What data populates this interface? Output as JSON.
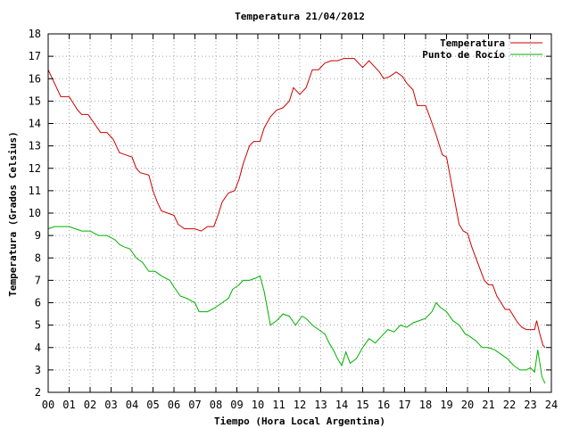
{
  "chart_data": {
    "type": "line",
    "title": "Temperatura 21/04/2012",
    "xlabel": "Tiempo (Hora Local Argentina)",
    "ylabel": "Temperatura (Grados Celsius)",
    "xlim": [
      0,
      24
    ],
    "ylim": [
      2,
      18
    ],
    "x_ticks": [
      "00",
      "01",
      "02",
      "03",
      "04",
      "05",
      "06",
      "07",
      "08",
      "09",
      "10",
      "11",
      "12",
      "13",
      "14",
      "15",
      "16",
      "17",
      "18",
      "19",
      "20",
      "21",
      "22",
      "23",
      "24"
    ],
    "y_ticks": [
      "2",
      "3",
      "4",
      "5",
      "6",
      "7",
      "8",
      "9",
      "10",
      "11",
      "12",
      "13",
      "14",
      "15",
      "16",
      "17",
      "18"
    ],
    "grid": true,
    "legend_position": "top-right",
    "series": [
      {
        "name": "Temperatura",
        "color": "#cc0000",
        "points": [
          [
            0.0,
            16.4
          ],
          [
            0.2,
            16.0
          ],
          [
            0.4,
            15.6
          ],
          [
            0.6,
            15.2
          ],
          [
            1.0,
            15.2
          ],
          [
            1.2,
            14.9
          ],
          [
            1.4,
            14.6
          ],
          [
            1.6,
            14.4
          ],
          [
            1.9,
            14.4
          ],
          [
            2.2,
            14.0
          ],
          [
            2.5,
            13.6
          ],
          [
            2.8,
            13.6
          ],
          [
            3.1,
            13.3
          ],
          [
            3.4,
            12.7
          ],
          [
            3.7,
            12.6
          ],
          [
            4.0,
            12.5
          ],
          [
            4.2,
            12.0
          ],
          [
            4.4,
            11.8
          ],
          [
            4.8,
            11.7
          ],
          [
            5.0,
            11.0
          ],
          [
            5.2,
            10.5
          ],
          [
            5.4,
            10.1
          ],
          [
            5.7,
            10.0
          ],
          [
            6.0,
            9.9
          ],
          [
            6.2,
            9.5
          ],
          [
            6.5,
            9.3
          ],
          [
            7.0,
            9.3
          ],
          [
            7.3,
            9.2
          ],
          [
            7.6,
            9.4
          ],
          [
            7.9,
            9.4
          ],
          [
            8.1,
            9.9
          ],
          [
            8.3,
            10.5
          ],
          [
            8.6,
            10.9
          ],
          [
            8.9,
            11.0
          ],
          [
            9.1,
            11.5
          ],
          [
            9.3,
            12.2
          ],
          [
            9.6,
            13.0
          ],
          [
            9.8,
            13.2
          ],
          [
            10.1,
            13.2
          ],
          [
            10.3,
            13.8
          ],
          [
            10.6,
            14.3
          ],
          [
            10.9,
            14.6
          ],
          [
            11.2,
            14.7
          ],
          [
            11.5,
            15.0
          ],
          [
            11.7,
            15.6
          ],
          [
            12.0,
            15.3
          ],
          [
            12.3,
            15.6
          ],
          [
            12.6,
            16.4
          ],
          [
            12.9,
            16.4
          ],
          [
            13.2,
            16.7
          ],
          [
            13.5,
            16.8
          ],
          [
            13.8,
            16.8
          ],
          [
            14.1,
            16.9
          ],
          [
            14.4,
            16.9
          ],
          [
            14.6,
            16.9
          ],
          [
            14.8,
            16.7
          ],
          [
            15.0,
            16.5
          ],
          [
            15.3,
            16.8
          ],
          [
            15.6,
            16.5
          ],
          [
            15.8,
            16.3
          ],
          [
            16.0,
            16.0
          ],
          [
            16.3,
            16.1
          ],
          [
            16.6,
            16.3
          ],
          [
            16.9,
            16.1
          ],
          [
            17.1,
            15.8
          ],
          [
            17.4,
            15.5
          ],
          [
            17.6,
            14.8
          ],
          [
            18.0,
            14.8
          ],
          [
            18.2,
            14.3
          ],
          [
            18.5,
            13.5
          ],
          [
            18.8,
            12.6
          ],
          [
            19.0,
            12.5
          ],
          [
            19.2,
            11.5
          ],
          [
            19.4,
            10.5
          ],
          [
            19.6,
            9.5
          ],
          [
            19.8,
            9.2
          ],
          [
            20.0,
            9.1
          ],
          [
            20.2,
            8.5
          ],
          [
            20.4,
            8.0
          ],
          [
            20.6,
            7.5
          ],
          [
            20.8,
            7.0
          ],
          [
            21.0,
            6.8
          ],
          [
            21.2,
            6.8
          ],
          [
            21.4,
            6.3
          ],
          [
            21.6,
            6.0
          ],
          [
            21.8,
            5.7
          ],
          [
            22.0,
            5.7
          ],
          [
            22.2,
            5.4
          ],
          [
            22.4,
            5.1
          ],
          [
            22.6,
            4.9
          ],
          [
            22.8,
            4.8
          ],
          [
            23.0,
            4.8
          ],
          [
            23.2,
            4.8
          ],
          [
            23.3,
            5.2
          ],
          [
            23.45,
            4.6
          ],
          [
            23.6,
            4.1
          ],
          [
            23.7,
            4.0
          ]
        ]
      },
      {
        "name": "Punto de Rocío",
        "color": "#00b000",
        "points": [
          [
            0.0,
            9.3
          ],
          [
            0.3,
            9.4
          ],
          [
            0.6,
            9.4
          ],
          [
            1.0,
            9.4
          ],
          [
            1.3,
            9.3
          ],
          [
            1.6,
            9.2
          ],
          [
            2.0,
            9.2
          ],
          [
            2.4,
            9.0
          ],
          [
            2.8,
            9.0
          ],
          [
            3.2,
            8.8
          ],
          [
            3.4,
            8.6
          ],
          [
            3.6,
            8.5
          ],
          [
            3.9,
            8.4
          ],
          [
            4.2,
            8.0
          ],
          [
            4.5,
            7.8
          ],
          [
            4.8,
            7.4
          ],
          [
            5.1,
            7.4
          ],
          [
            5.4,
            7.2
          ],
          [
            5.8,
            7.0
          ],
          [
            6.0,
            6.7
          ],
          [
            6.3,
            6.3
          ],
          [
            6.6,
            6.2
          ],
          [
            7.0,
            6.0
          ],
          [
            7.2,
            5.6
          ],
          [
            7.6,
            5.6
          ],
          [
            8.0,
            5.8
          ],
          [
            8.3,
            6.0
          ],
          [
            8.6,
            6.2
          ],
          [
            8.8,
            6.6
          ],
          [
            9.1,
            6.8
          ],
          [
            9.3,
            7.0
          ],
          [
            9.6,
            7.0
          ],
          [
            9.9,
            7.1
          ],
          [
            10.1,
            7.2
          ],
          [
            10.3,
            6.5
          ],
          [
            10.6,
            5.0
          ],
          [
            10.9,
            5.2
          ],
          [
            11.2,
            5.5
          ],
          [
            11.5,
            5.4
          ],
          [
            11.8,
            5.0
          ],
          [
            12.1,
            5.4
          ],
          [
            12.3,
            5.3
          ],
          [
            12.6,
            5.0
          ],
          [
            12.9,
            4.8
          ],
          [
            13.2,
            4.6
          ],
          [
            13.4,
            4.2
          ],
          [
            13.6,
            3.9
          ],
          [
            13.8,
            3.5
          ],
          [
            14.0,
            3.2
          ],
          [
            14.2,
            3.8
          ],
          [
            14.4,
            3.3
          ],
          [
            14.7,
            3.5
          ],
          [
            15.0,
            4.0
          ],
          [
            15.3,
            4.4
          ],
          [
            15.6,
            4.2
          ],
          [
            15.9,
            4.5
          ],
          [
            16.2,
            4.8
          ],
          [
            16.5,
            4.7
          ],
          [
            16.8,
            5.0
          ],
          [
            17.1,
            4.9
          ],
          [
            17.4,
            5.1
          ],
          [
            17.7,
            5.2
          ],
          [
            18.0,
            5.3
          ],
          [
            18.3,
            5.6
          ],
          [
            18.5,
            6.0
          ],
          [
            18.7,
            5.8
          ],
          [
            19.0,
            5.6
          ],
          [
            19.3,
            5.2
          ],
          [
            19.6,
            5.0
          ],
          [
            19.9,
            4.6
          ],
          [
            20.1,
            4.5
          ],
          [
            20.4,
            4.3
          ],
          [
            20.7,
            4.0
          ],
          [
            21.0,
            4.0
          ],
          [
            21.3,
            3.9
          ],
          [
            21.6,
            3.7
          ],
          [
            21.9,
            3.5
          ],
          [
            22.2,
            3.2
          ],
          [
            22.5,
            3.0
          ],
          [
            22.8,
            3.0
          ],
          [
            23.0,
            3.1
          ],
          [
            23.2,
            2.9
          ],
          [
            23.35,
            3.9
          ],
          [
            23.45,
            3.3
          ],
          [
            23.55,
            2.7
          ],
          [
            23.7,
            2.4
          ]
        ]
      }
    ]
  }
}
